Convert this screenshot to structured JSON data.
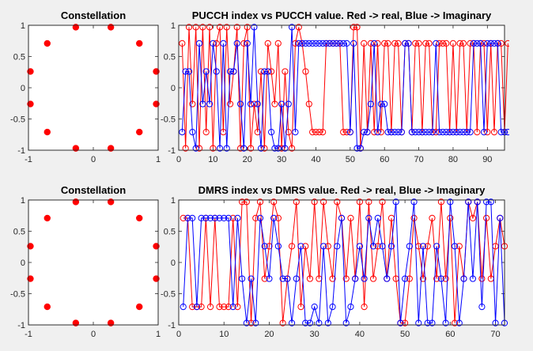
{
  "colors": {
    "real": "#ff0000",
    "imag": "#0000ff",
    "constellation": "#ff0000",
    "background": "#f0f0f0"
  },
  "chart_data": [
    {
      "type": "scatter",
      "title": "Constellation",
      "xlim": [
        -1,
        1
      ],
      "ylim": [
        -1,
        1
      ],
      "xticks": [
        -1,
        0,
        1
      ],
      "yticks": [
        -1,
        -0.5,
        0,
        0.5,
        1
      ],
      "xticklabels": [
        "-1",
        "0",
        "1"
      ],
      "yticklabels": [
        "-1",
        "-0.5",
        "0",
        "0.5",
        "1"
      ],
      "grid": false,
      "points": [
        [
          -0.27,
          0.97
        ],
        [
          0.27,
          0.97
        ],
        [
          -0.71,
          0.71
        ],
        [
          0.71,
          0.71
        ],
        [
          -0.97,
          0.26
        ],
        [
          0.97,
          0.26
        ],
        [
          -0.97,
          -0.26
        ],
        [
          0.97,
          -0.26
        ],
        [
          -0.71,
          -0.71
        ],
        [
          0.71,
          -0.71
        ],
        [
          -0.27,
          -0.97
        ],
        [
          0.27,
          -0.97
        ]
      ]
    },
    {
      "type": "line",
      "title": "PUCCH index vs PUCCH value. Red -> real, Blue -> Imaginary",
      "xlim": [
        0,
        95
      ],
      "ylim": [
        -1,
        1
      ],
      "xticks": [
        0,
        10,
        20,
        30,
        40,
        50,
        60,
        70,
        80,
        90
      ],
      "xticklabels": [
        "0",
        "10",
        "20",
        "30",
        "40",
        "50",
        "60",
        "70",
        "80",
        "90"
      ],
      "yticks": [
        -1,
        -0.5,
        0,
        0.5,
        1
      ],
      "yticklabels": [
        "-1",
        "-0.5",
        "0",
        "0.5",
        "1"
      ],
      "grid": false,
      "series": [
        {
          "key": "real",
          "marker": "o",
          "values": [
            0.71,
            -0.97,
            0.97,
            -0.26,
            0.97,
            -0.97,
            0.97,
            -0.71,
            0.97,
            -0.97,
            0.71,
            0.97,
            -0.71,
            0.97,
            -0.26,
            0.26,
            0.97,
            -0.97,
            0.71,
            0.97,
            -0.97,
            -0.26,
            -0.71,
            0.26,
            -0.97,
            0.71,
            0.26,
            -0.26,
            0.71,
            -0.97,
            0.26,
            -0.71,
            -0.97,
            0.71,
            0.97,
            0.71,
            0.26,
            -0.26,
            -0.71,
            -0.71,
            -0.71,
            -0.71,
            0.71,
            0.71,
            0.71,
            0.71,
            0.71,
            -0.71,
            -0.71,
            -0.71,
            0.97,
            0.97,
            -0.97,
            0.71,
            -0.71,
            0.71,
            -0.71,
            0.71,
            -0.71,
            0.71,
            0.71,
            -0.71,
            0.71,
            0.71,
            -0.71,
            0.71,
            0.71,
            -0.71,
            0.71,
            0.71,
            -0.71,
            0.71,
            0.71,
            -0.71,
            -0.71,
            0.71,
            0.71,
            0.71,
            -0.71,
            0.71,
            -0.71,
            0.71,
            0.71,
            -0.71,
            0.71,
            0.71,
            -0.71,
            0.71,
            0.71,
            -0.71,
            0.71,
            -0.71,
            0.71,
            0.71,
            -0.71,
            0.71
          ]
        },
        {
          "key": "imag",
          "marker": "o",
          "values": [
            -0.71,
            0.26,
            0.26,
            -0.71,
            -0.97,
            0.71,
            -0.26,
            0.26,
            -0.26,
            0.71,
            0.26,
            -0.97,
            0.71,
            -0.97,
            0.26,
            0.26,
            0.71,
            -0.26,
            -0.97,
            0.71,
            -0.26,
            0.97,
            -0.26,
            -0.97,
            0.26,
            0.26,
            -0.71,
            -0.97,
            -0.97,
            -0.26,
            -0.97,
            -0.26,
            0.97,
            -0.71,
            0.71,
            0.71,
            0.71,
            0.71,
            0.71,
            0.71,
            0.71,
            0.71,
            0.71,
            0.71,
            0.71,
            0.71,
            0.71,
            0.71,
            0.71,
            -0.71,
            0.71,
            -0.97,
            -0.97,
            -0.71,
            -0.71,
            -0.26,
            0.71,
            -0.71,
            -0.26,
            -0.26,
            -0.71,
            -0.71,
            -0.71,
            -0.71,
            -0.71,
            0.71,
            0.71,
            -0.71,
            -0.71,
            -0.71,
            -0.71,
            -0.71,
            -0.71,
            -0.71,
            0.71,
            -0.71,
            -0.71,
            -0.71,
            -0.71,
            -0.71,
            -0.71,
            -0.71,
            -0.71,
            -0.71,
            -0.71,
            0.71,
            0.71,
            0.71,
            -0.71,
            0.71,
            0.71,
            0.71,
            0.71,
            -0.71,
            -0.71,
            -0.71
          ]
        }
      ]
    },
    {
      "type": "scatter",
      "title": "Constellation",
      "xlim": [
        -1,
        1
      ],
      "ylim": [
        -1,
        1
      ],
      "xticks": [
        -1,
        0,
        1
      ],
      "yticks": [
        -1,
        -0.5,
        0,
        0.5,
        1
      ],
      "xticklabels": [
        "-1",
        "0",
        "1"
      ],
      "yticklabels": [
        "-1",
        "-0.5",
        "0",
        "0.5",
        "1"
      ],
      "grid": false,
      "points": [
        [
          -0.27,
          0.97
        ],
        [
          0.27,
          0.97
        ],
        [
          -0.71,
          0.71
        ],
        [
          0.71,
          0.71
        ],
        [
          -0.97,
          0.26
        ],
        [
          0.97,
          0.26
        ],
        [
          -0.97,
          -0.26
        ],
        [
          0.97,
          -0.26
        ],
        [
          -0.71,
          -0.71
        ],
        [
          0.71,
          -0.71
        ],
        [
          -0.27,
          -0.97
        ],
        [
          0.27,
          -0.97
        ]
      ]
    },
    {
      "type": "line",
      "title": "DMRS index vs DMRS value. Red -> real, Blue -> Imaginary",
      "xlim": [
        0,
        72
      ],
      "ylim": [
        -1,
        1
      ],
      "xticks": [
        0,
        10,
        20,
        30,
        40,
        50,
        60,
        70
      ],
      "xticklabels": [
        "0",
        "10",
        "20",
        "30",
        "40",
        "50",
        "60",
        "70"
      ],
      "yticks": [
        -1,
        -0.5,
        0,
        0.5,
        1
      ],
      "yticklabels": [
        "-1",
        "-0.5",
        "0",
        "0.5",
        "1"
      ],
      "grid": false,
      "series": [
        {
          "key": "real",
          "marker": "o",
          "values": [
            0.71,
            0.71,
            -0.71,
            -0.71,
            -0.71,
            0.71,
            -0.71,
            0.71,
            -0.71,
            -0.71,
            -0.71,
            0.71,
            -0.71,
            0.97,
            0.97,
            -0.97,
            0.71,
            0.97,
            -0.26,
            0.26,
            0.97,
            0.71,
            -0.97,
            -0.26,
            0.26,
            0.97,
            -0.71,
            0.26,
            -0.26,
            0.97,
            -0.26,
            0.97,
            0.26,
            -0.26,
            0.97,
            0.71,
            -0.26,
            0.71,
            -0.26,
            0.97,
            -0.71,
            0.97,
            -0.26,
            0.26,
            0.97,
            -0.26,
            0.71,
            -0.26,
            -0.97,
            -0.97,
            -0.26,
            0.71,
            0.26,
            -0.26,
            0.26,
            0.71,
            -0.26,
            0.97,
            -0.26,
            0.71,
            -0.97,
            0.26,
            -0.26,
            0.97,
            0.71,
            0.97,
            -0.26,
            0.71,
            -0.26,
            0.26,
            0.71,
            0.26
          ]
        },
        {
          "key": "imag",
          "marker": "o",
          "values": [
            -0.71,
            0.71,
            0.71,
            -0.71,
            0.71,
            0.71,
            0.71,
            0.71,
            0.71,
            0.71,
            0.71,
            -0.71,
            0.71,
            -0.26,
            -0.97,
            -0.26,
            -0.97,
            0.71,
            0.26,
            -0.26,
            0.71,
            0.26,
            -0.26,
            -0.26,
            -0.97,
            -0.26,
            0.26,
            -0.97,
            -0.97,
            -0.71,
            -0.97,
            0.26,
            -0.97,
            -0.71,
            0.26,
            0.71,
            -0.97,
            -0.71,
            -0.26,
            0.26,
            -0.26,
            0.71,
            0.26,
            0.71,
            0.26,
            -0.26,
            0.26,
            0.97,
            -0.97,
            -0.26,
            0.26,
            0.97,
            -0.97,
            0.26,
            -0.97,
            -0.97,
            0.26,
            -0.26,
            -0.97,
            0.97,
            0.26,
            -0.97,
            -0.26,
            0.97,
            -0.26,
            0.97,
            -0.71,
            0.97,
            0.97,
            -0.97,
            0.71,
            -0.97
          ]
        }
      ]
    }
  ]
}
